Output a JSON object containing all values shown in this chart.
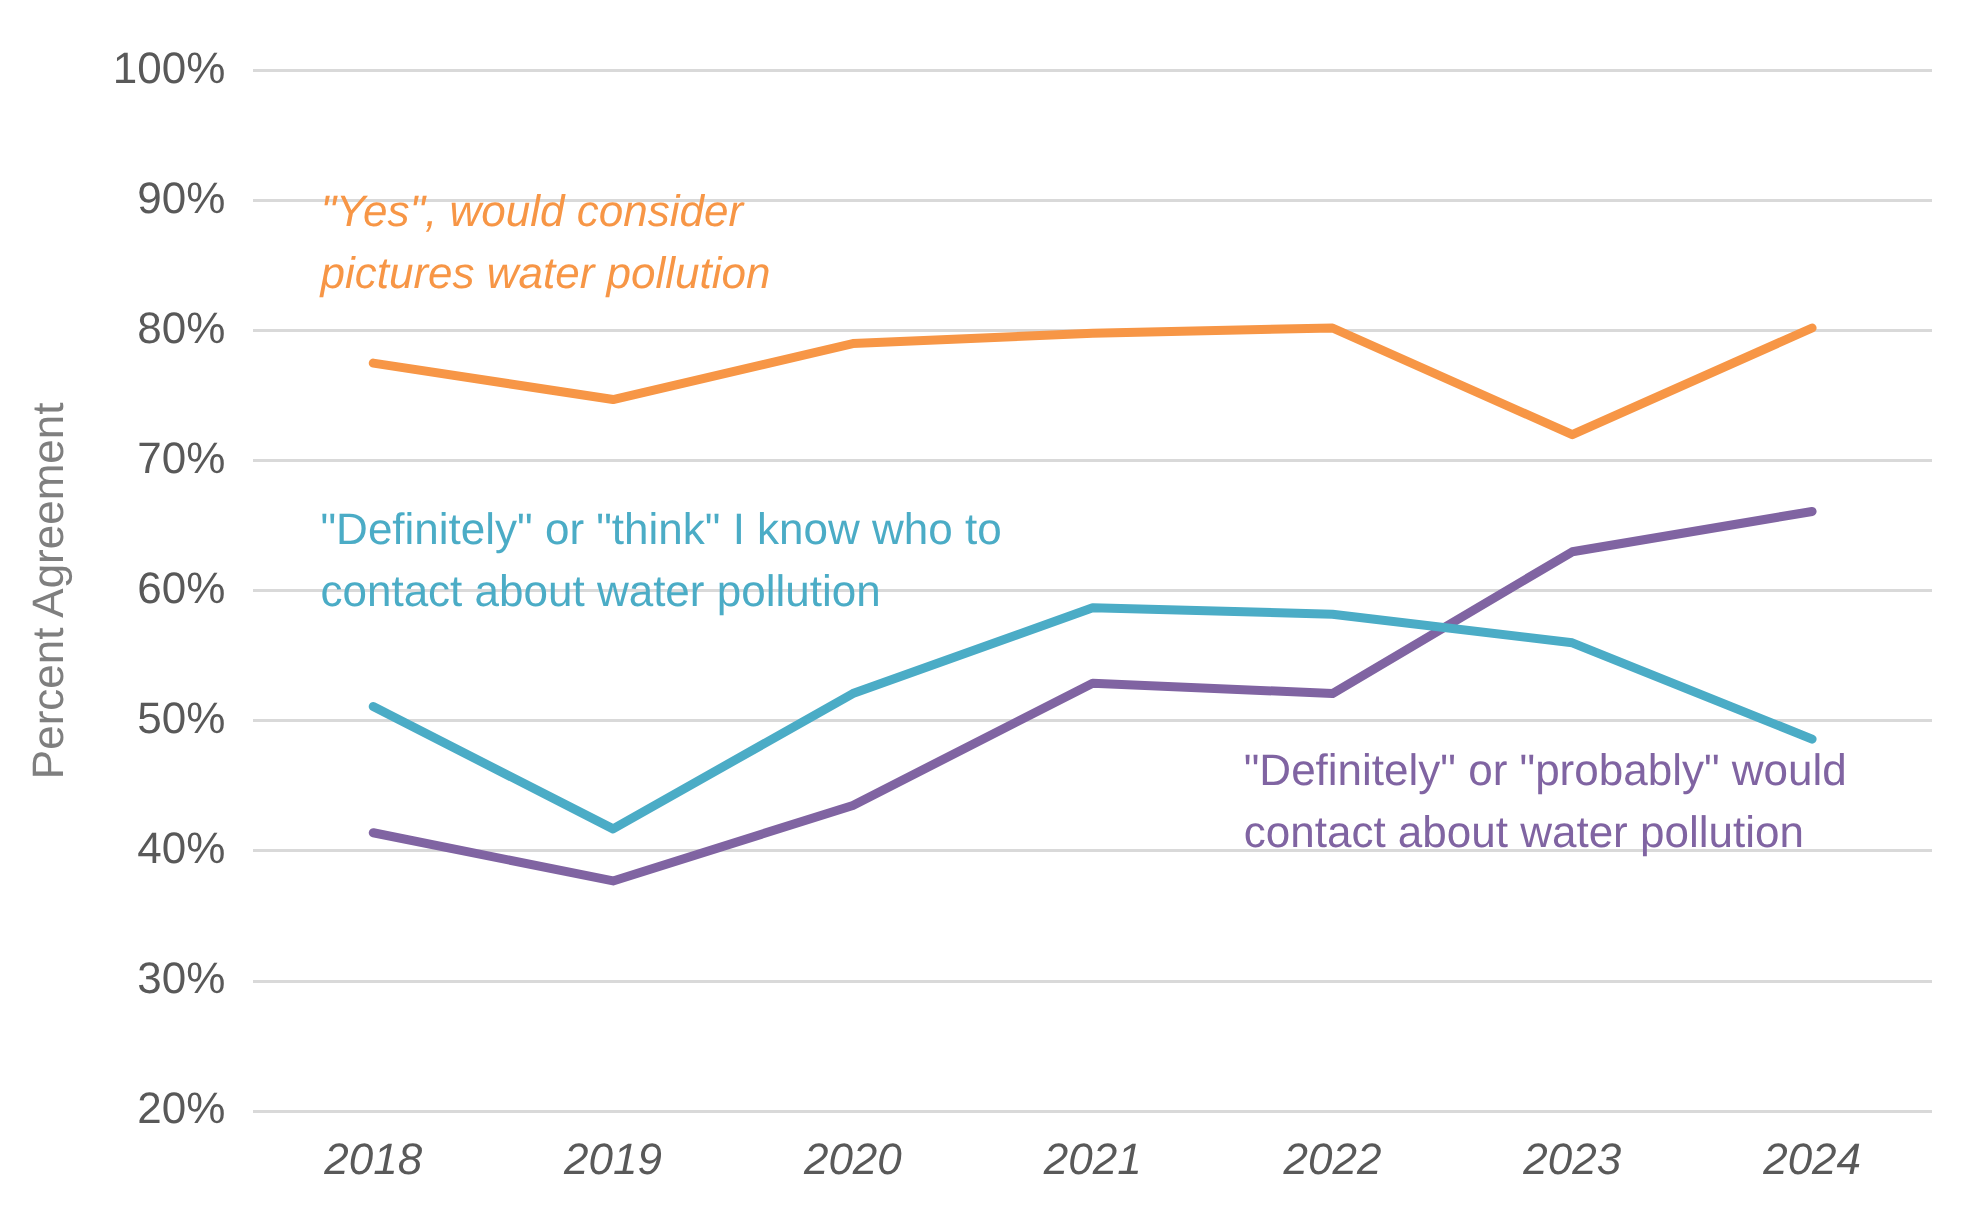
{
  "chart_data": {
    "type": "line",
    "ylabel": "Percent Agreement",
    "categories": [
      "2018",
      "2019",
      "2020",
      "2021",
      "2022",
      "2023",
      "2024"
    ],
    "series": [
      {
        "name": "\"Yes\", would consider pictures water pollution",
        "color": "#f79646",
        "values": [
          77.5,
          74.7,
          79.0,
          79.8,
          80.2,
          72.0,
          80.2
        ]
      },
      {
        "name": "\"Definitely\" or \"think\" I know who to contact about water pollution",
        "color": "#4bacc6",
        "values": [
          51.1,
          41.7,
          52.1,
          58.7,
          58.2,
          56.0,
          48.6
        ]
      },
      {
        "name": "\"Definitely\" or \"probably\" would contact about water pollution",
        "color": "#8064a2",
        "values": [
          41.4,
          37.7,
          43.5,
          52.9,
          52.1,
          63.0,
          66.1
        ]
      }
    ],
    "ylim": [
      20,
      100
    ],
    "yticks": [
      {
        "value": 20,
        "label": "20%"
      },
      {
        "value": 30,
        "label": "30%"
      },
      {
        "value": 40,
        "label": "40%"
      },
      {
        "value": 50,
        "label": "50%"
      },
      {
        "value": 60,
        "label": "60%"
      },
      {
        "value": 70,
        "label": "70%"
      },
      {
        "value": 80,
        "label": "80%"
      },
      {
        "value": 90,
        "label": "90%"
      },
      {
        "value": 100,
        "label": "100%"
      }
    ],
    "grid": "y",
    "legend": false,
    "marker": "none",
    "line_style": "solid"
  }
}
